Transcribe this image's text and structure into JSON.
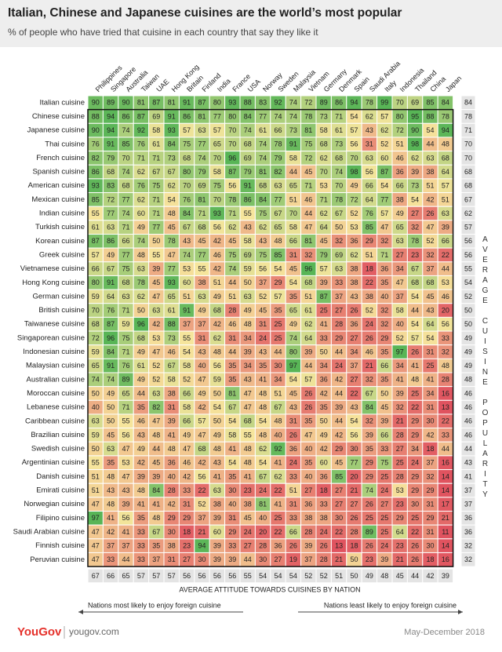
{
  "title": "Italian, Chinese and Japanese cuisines are the world’s most popular",
  "subtitle": "% of people who have tried that cuisine in each country that say they like it",
  "columns": [
    "Philippines",
    "Singapore",
    "Australia",
    "Taiwan",
    "UAE",
    "Hong Kong",
    "Britain",
    "Finland",
    "India",
    "France",
    "USA",
    "Norway",
    "Sweden",
    "Malaysia",
    "Vietnam",
    "Germany",
    "Denmark",
    "Spain",
    "Saudi Arabia",
    "Italy",
    "Indonesia",
    "Thailand",
    "China",
    "Japan"
  ],
  "rows": [
    {
      "label": "Italian cuisine",
      "values": [
        90,
        89,
        90,
        81,
        87,
        81,
        91,
        87,
        80,
        93,
        88,
        83,
        92,
        74,
        72,
        89,
        86,
        94,
        78,
        99,
        70,
        69,
        85,
        84
      ],
      "average": 84
    },
    {
      "label": "Chinese cuisine",
      "values": [
        88,
        94,
        86,
        87,
        69,
        91,
        86,
        81,
        77,
        80,
        84,
        77,
        74,
        74,
        78,
        73,
        71,
        54,
        62,
        57,
        80,
        95,
        88,
        78
      ],
      "average": 78
    },
    {
      "label": "Japanese cuisine",
      "values": [
        90,
        94,
        74,
        92,
        58,
        93,
        57,
        63,
        57,
        70,
        74,
        61,
        66,
        73,
        81,
        58,
        61,
        57,
        43,
        62,
        72,
        90,
        54,
        94
      ],
      "average": 71
    },
    {
      "label": "Thai cuisine",
      "values": [
        76,
        91,
        85,
        76,
        61,
        84,
        75,
        77,
        65,
        70,
        68,
        74,
        78,
        91,
        75,
        68,
        73,
        56,
        31,
        52,
        51,
        98,
        44,
        48
      ],
      "average": 70
    },
    {
      "label": "French cuisine",
      "values": [
        82,
        79,
        70,
        71,
        71,
        73,
        68,
        74,
        70,
        96,
        69,
        74,
        79,
        58,
        72,
        62,
        68,
        70,
        63,
        60,
        46,
        62,
        63,
        68
      ],
      "average": 70
    },
    {
      "label": "Spanish cuisine",
      "values": [
        86,
        68,
        74,
        62,
        67,
        67,
        80,
        79,
        58,
        87,
        79,
        81,
        82,
        44,
        45,
        70,
        74,
        98,
        56,
        87,
        36,
        39,
        38,
        64
      ],
      "average": 68
    },
    {
      "label": "American cuisine",
      "values": [
        93,
        83,
        68,
        76,
        75,
        62,
        70,
        69,
        75,
        56,
        91,
        68,
        63,
        65,
        71,
        53,
        70,
        49,
        66,
        54,
        66,
        73,
        51,
        57
      ],
      "average": 68
    },
    {
      "label": "Mexican cuisine",
      "values": [
        85,
        72,
        77,
        62,
        71,
        54,
        76,
        81,
        70,
        78,
        86,
        84,
        77,
        51,
        46,
        71,
        78,
        72,
        64,
        77,
        38,
        54,
        42,
        51
      ],
      "average": 67
    },
    {
      "label": "Indian cuisine",
      "values": [
        55,
        77,
        74,
        60,
        71,
        48,
        84,
        71,
        93,
        71,
        55,
        75,
        67,
        70,
        44,
        62,
        67,
        52,
        76,
        57,
        49,
        27,
        26,
        63
      ],
      "average": 62
    },
    {
      "label": "Turkish cuisine",
      "values": [
        61,
        63,
        71,
        49,
        77,
        45,
        67,
        68,
        56,
        62,
        43,
        62,
        65,
        58,
        47,
        64,
        50,
        53,
        85,
        47,
        65,
        32,
        47,
        39
      ],
      "average": 57
    },
    {
      "label": "Korean cuisine",
      "values": [
        87,
        86,
        66,
        74,
        50,
        78,
        43,
        45,
        42,
        45,
        58,
        43,
        48,
        66,
        81,
        45,
        32,
        36,
        29,
        32,
        63,
        78,
        52,
        66
      ],
      "average": 56
    },
    {
      "label": "Greek cuisine",
      "values": [
        57,
        49,
        77,
        48,
        55,
        47,
        74,
        77,
        46,
        75,
        69,
        75,
        85,
        31,
        32,
        79,
        69,
        62,
        51,
        71,
        27,
        23,
        32,
        22
      ],
      "average": 56
    },
    {
      "label": "Vietnamese cuisine",
      "values": [
        66,
        67,
        75,
        63,
        39,
        77,
        53,
        55,
        42,
        74,
        59,
        56,
        54,
        45,
        96,
        57,
        63,
        38,
        18,
        36,
        34,
        67,
        37,
        44
      ],
      "average": 55
    },
    {
      "label": "Hong Kong cuisine",
      "values": [
        80,
        91,
        68,
        78,
        45,
        93,
        60,
        38,
        51,
        44,
        50,
        37,
        29,
        54,
        68,
        39,
        33,
        38,
        22,
        35,
        47,
        68,
        68,
        53
      ],
      "average": 54
    },
    {
      "label": "German cuisine",
      "values": [
        59,
        64,
        63,
        62,
        47,
        65,
        51,
        63,
        49,
        51,
        63,
        52,
        57,
        35,
        51,
        87,
        37,
        43,
        38,
        40,
        37,
        54,
        45,
        46
      ],
      "average": 52
    },
    {
      "label": "British cuisine",
      "values": [
        70,
        76,
        71,
        50,
        63,
        61,
        91,
        49,
        68,
        28,
        49,
        45,
        35,
        65,
        61,
        25,
        27,
        26,
        52,
        32,
        58,
        44,
        43,
        20
      ],
      "average": 50
    },
    {
      "label": "Taiwanese cuisine",
      "values": [
        68,
        87,
        59,
        96,
        42,
        88,
        37,
        37,
        42,
        46,
        48,
        31,
        25,
        49,
        62,
        41,
        28,
        36,
        24,
        32,
        40,
        54,
        64,
        56
      ],
      "average": 50
    },
    {
      "label": "Singaporean cuisine",
      "values": [
        72,
        96,
        75,
        68,
        53,
        73,
        55,
        31,
        62,
        31,
        34,
        24,
        25,
        74,
        64,
        33,
        29,
        27,
        26,
        29,
        52,
        57,
        54,
        33
      ],
      "average": 49
    },
    {
      "label": "Indonesian cuisine",
      "values": [
        59,
        84,
        71,
        49,
        47,
        46,
        54,
        43,
        48,
        44,
        39,
        43,
        44,
        80,
        39,
        50,
        44,
        34,
        46,
        35,
        97,
        26,
        31,
        32
      ],
      "average": 49
    },
    {
      "label": "Malaysian cuisine",
      "values": [
        65,
        91,
        76,
        61,
        52,
        67,
        58,
        40,
        56,
        35,
        34,
        35,
        30,
        97,
        44,
        34,
        24,
        37,
        21,
        66,
        34,
        41,
        25,
        48
      ],
      "average": 49
    },
    {
      "label": "Australian cuisine",
      "values": [
        74,
        74,
        89,
        49,
        52,
        58,
        52,
        47,
        59,
        35,
        43,
        41,
        34,
        54,
        57,
        36,
        42,
        27,
        32,
        35,
        41,
        48,
        41,
        28
      ],
      "average": 48
    },
    {
      "label": "Moroccan cuisine",
      "values": [
        50,
        49,
        65,
        44,
        63,
        38,
        66,
        49,
        50,
        81,
        47,
        48,
        51,
        45,
        26,
        42,
        44,
        22,
        67,
        50,
        39,
        25,
        34,
        16
      ],
      "average": 46
    },
    {
      "label": "Lebanese cuisine",
      "values": [
        40,
        50,
        71,
        35,
        82,
        31,
        58,
        42,
        54,
        67,
        47,
        48,
        67,
        43,
        26,
        35,
        39,
        43,
        84,
        45,
        32,
        22,
        31,
        13
      ],
      "average": 46
    },
    {
      "label": "Caribbean cuisine",
      "values": [
        63,
        50,
        55,
        46,
        47,
        39,
        66,
        57,
        50,
        54,
        68,
        54,
        48,
        31,
        35,
        50,
        44,
        54,
        32,
        39,
        21,
        29,
        30,
        22
      ],
      "average": 46
    },
    {
      "label": "Brazilian cuisine",
      "values": [
        59,
        45,
        56,
        43,
        48,
        41,
        49,
        47,
        49,
        58,
        55,
        48,
        40,
        26,
        47,
        49,
        42,
        56,
        39,
        66,
        28,
        29,
        42,
        33
      ],
      "average": 46
    },
    {
      "label": "Swedish cuisine",
      "values": [
        50,
        63,
        47,
        49,
        44,
        48,
        47,
        68,
        48,
        41,
        48,
        62,
        92,
        36,
        40,
        42,
        29,
        30,
        35,
        33,
        27,
        34,
        18,
        44
      ],
      "average": 44
    },
    {
      "label": "Argentinian cuisine",
      "values": [
        55,
        35,
        53,
        42,
        45,
        36,
        46,
        42,
        43,
        54,
        48,
        54,
        41,
        24,
        35,
        60,
        45,
        77,
        29,
        75,
        25,
        24,
        37,
        16
      ],
      "average": 43
    },
    {
      "label": "Danish cuisine",
      "values": [
        51,
        48,
        47,
        39,
        39,
        40,
        42,
        56,
        41,
        35,
        41,
        67,
        62,
        33,
        40,
        36,
        85,
        20,
        29,
        25,
        28,
        29,
        32,
        14
      ],
      "average": 41
    },
    {
      "label": "Emirati cuisine",
      "values": [
        51,
        43,
        43,
        48,
        84,
        28,
        33,
        22,
        63,
        30,
        23,
        24,
        22,
        51,
        27,
        18,
        27,
        21,
        74,
        24,
        53,
        29,
        29,
        14
      ],
      "average": 37
    },
    {
      "label": "Norwegian cuisine",
      "values": [
        47,
        48,
        39,
        41,
        41,
        42,
        31,
        52,
        38,
        40,
        38,
        81,
        41,
        31,
        36,
        33,
        27,
        27,
        26,
        27,
        23,
        30,
        31,
        17
      ],
      "average": 37
    },
    {
      "label": "Filipino cuisine",
      "values": [
        97,
        41,
        56,
        35,
        48,
        29,
        29,
        37,
        39,
        31,
        45,
        40,
        25,
        33,
        38,
        38,
        30,
        26,
        25,
        25,
        29,
        25,
        29,
        21
      ],
      "average": 36
    },
    {
      "label": "Saudi Arabian cuisine",
      "values": [
        47,
        42,
        41,
        33,
        67,
        30,
        18,
        21,
        60,
        29,
        24,
        20,
        22,
        66,
        28,
        24,
        22,
        28,
        89,
        25,
        64,
        22,
        31,
        11
      ],
      "average": 36
    },
    {
      "label": "Finnish cuisine",
      "values": [
        47,
        37,
        37,
        33,
        35,
        38,
        23,
        94,
        39,
        33,
        27,
        28,
        36,
        26,
        39,
        26,
        13,
        18,
        26,
        24,
        23,
        26,
        30,
        14
      ],
      "average": 32
    },
    {
      "label": "Peruvian cuisine",
      "values": [
        47,
        33,
        44,
        33,
        37,
        31,
        27,
        30,
        39,
        39,
        44,
        30,
        27,
        19,
        37,
        28,
        21,
        50,
        23,
        39,
        21,
        26,
        18,
        16
      ],
      "average": 32
    }
  ],
  "column_averages": [
    67,
    66,
    65,
    57,
    57,
    57,
    56,
    56,
    56,
    56,
    55,
    54,
    54,
    54,
    52,
    52,
    51,
    50,
    49,
    48,
    45,
    44,
    42,
    39
  ],
  "color_scale": [
    {
      "value": 15,
      "color": "#e0535f"
    },
    {
      "value": 55,
      "color": "#f6e59c"
    },
    {
      "value": 95,
      "color": "#58b556"
    }
  ],
  "bottom_label": "AVERAGE ATTITUDE TOWARDS CUISINES BY NATION",
  "right_label": "AVERAGE CUISINE POPULARITY",
  "left_note": "Nations most likely to enjoy foreign cuisine",
  "right_note": "Nations least likely to enjoy foreign cuisine",
  "brand": "YouGov",
  "site": "yougov.com",
  "date": "May-December 2018"
}
